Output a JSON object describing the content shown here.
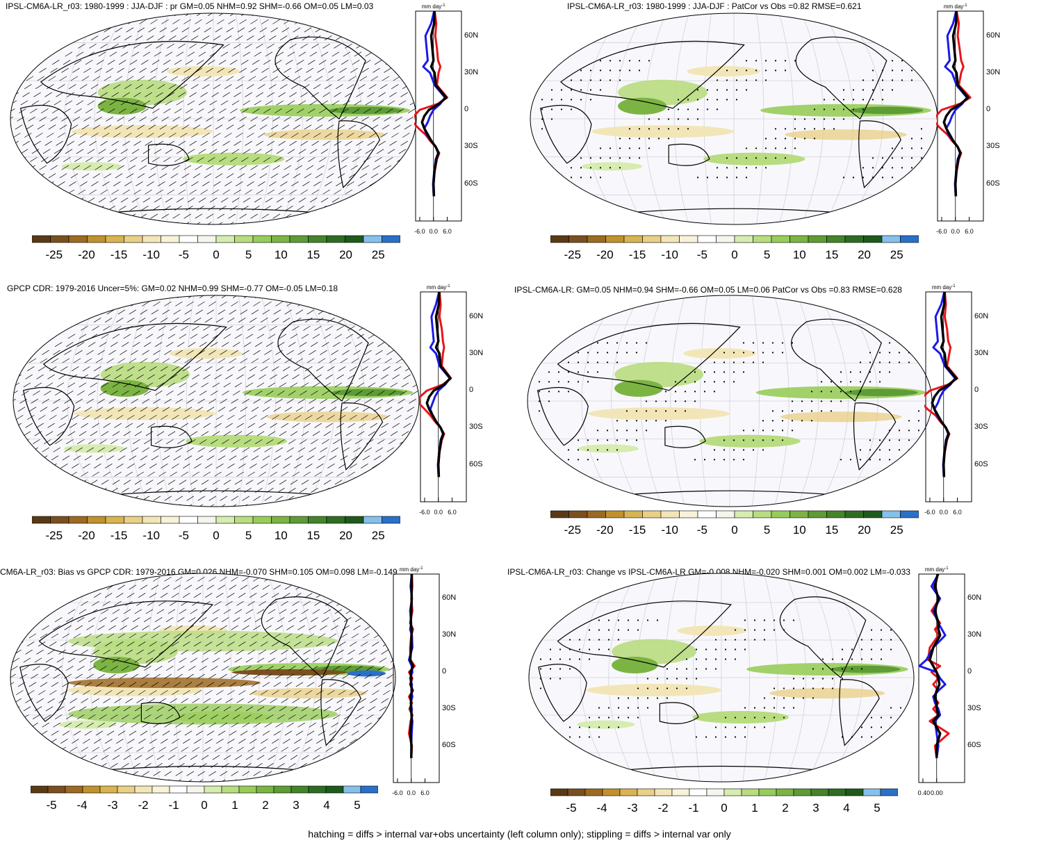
{
  "footnote": "hatching = diffs > internal var+obs uncertainty (left column only); stippling = diffs > internal var only",
  "colors": {
    "colorbar_scale": [
      "#5a3a16",
      "#7a5020",
      "#9c6a22",
      "#c0922e",
      "#d8b452",
      "#e8d088",
      "#f2e6b8",
      "#f8f2da",
      "#ffffff",
      "#f4f6ee",
      "#d6ecb0",
      "#b8dc80",
      "#98cc5a",
      "#7cb444",
      "#5e9c36",
      "#44842c",
      "#2e6c24",
      "#1e5a1c",
      "#86c0ec",
      "#2a70c8"
    ],
    "model": "#e8141a",
    "obs": "#1a1ae8",
    "mean": "#000000"
  },
  "chart_data": [
    {
      "id": "p1",
      "type": "map",
      "title": "IPSL-CM6A-LR_r03: 1980-1999 : JJA-DJF : pr GM=0.05 NHM=0.92 SHM=-0.66 OM=0.05 LM=0.03",
      "colorbar_ticks": [
        "-25",
        "-20",
        "-15",
        "-10",
        "-5",
        "0",
        "5",
        "10",
        "15",
        "20",
        "25"
      ],
      "profile": {
        "unit": "mm day",
        "unit_exp": "-1",
        "xticks": [
          "-6.0",
          "0.0",
          "6.0"
        ],
        "yticks": [
          "60N",
          "30N",
          "0",
          "30S",
          "60S"
        ],
        "lat": [
          80,
          70,
          60,
          50,
          40,
          35,
          30,
          20,
          10,
          5,
          0,
          -5,
          -10,
          -15,
          -20,
          -25,
          -30,
          -35,
          -40,
          -50,
          -60,
          -70
        ],
        "series": [
          {
            "values": [
              0.5,
              1.2,
              0.8,
              1.5,
              2.0,
              3.0,
              2.2,
              1.5,
              6.0,
              2.0,
              -6.0,
              -8.5,
              -9.0,
              -6.5,
              -3.5,
              -1.5,
              1.0,
              2.5,
              1.5,
              0.5,
              0.0,
              0.2
            ]
          },
          {
            "values": [
              0.3,
              -1.0,
              -3.5,
              -3.0,
              -2.5,
              -4.5,
              -1.5,
              0.5,
              5.0,
              3.0,
              0.0,
              -1.5,
              -2.5,
              -4.0,
              -3.0,
              -1.0,
              1.0,
              2.0,
              1.0,
              0.3,
              -0.2,
              0.1
            ]
          },
          {
            "values": [
              0.4,
              0.3,
              -1.0,
              -0.5,
              0.0,
              -1.0,
              0.5,
              1.0,
              5.5,
              2.5,
              -2.0,
              -4.0,
              -5.0,
              -4.0,
              -2.5,
              -1.0,
              1.0,
              2.2,
              1.2,
              0.4,
              0.0,
              0.2
            ]
          }
        ]
      }
    },
    {
      "id": "p2",
      "type": "map",
      "title": "IPSL-CM6A-LR_r03: 1980-1999 : JJA-DJF : PatCor vs Obs =0.82 RMSE=0.621",
      "colorbar_ticks": [
        "-25",
        "-20",
        "-15",
        "-10",
        "-5",
        "0",
        "5",
        "10",
        "15",
        "20",
        "25"
      ],
      "profile": {
        "unit": "mm day",
        "unit_exp": "-1",
        "xticks": [
          "-6.0",
          "0.0",
          "6.0"
        ],
        "yticks": [
          "60N",
          "30N",
          "0",
          "30S",
          "60S"
        ],
        "lat": [
          80,
          70,
          60,
          50,
          40,
          35,
          30,
          20,
          10,
          5,
          0,
          -5,
          -10,
          -15,
          -20,
          -25,
          -30,
          -35,
          -40,
          -50,
          -60,
          -70
        ],
        "series": [
          {
            "values": [
              0.5,
              1.5,
              1.0,
              1.8,
              2.5,
              3.5,
              2.5,
              1.5,
              6.5,
              2.0,
              -6.0,
              -8.5,
              -9.0,
              -6.5,
              -3.5,
              -1.5,
              1.0,
              2.5,
              1.5,
              0.5,
              0.0,
              0.2
            ]
          },
          {
            "values": [
              0.3,
              -1.0,
              -3.5,
              -3.0,
              -2.5,
              -4.5,
              -1.5,
              0.5,
              5.0,
              3.0,
              0.0,
              -1.5,
              -2.5,
              -4.0,
              -3.0,
              -1.0,
              1.0,
              2.0,
              1.0,
              0.3,
              -0.2,
              0.1
            ]
          },
          {
            "values": [
              0.4,
              0.3,
              -1.0,
              -0.5,
              0.0,
              -1.0,
              0.5,
              1.0,
              5.5,
              2.5,
              -2.0,
              -4.0,
              -5.0,
              -4.0,
              -2.5,
              -1.0,
              1.0,
              2.2,
              1.2,
              0.4,
              0.0,
              0.2
            ]
          }
        ]
      }
    },
    {
      "id": "p3",
      "type": "map",
      "title": "GPCP CDR: 1979-2016 Uncer=5%: GM=0.02 NHM=0.99 SHM=-0.77 OM=-0.05 LM=0.18",
      "colorbar_ticks": [
        "-25",
        "-20",
        "-15",
        "-10",
        "-5",
        "0",
        "5",
        "10",
        "15",
        "20",
        "25"
      ],
      "profile": {
        "unit": "mm day",
        "unit_exp": "-1",
        "xticks": [
          "-6.0",
          "0.0",
          "6.0"
        ],
        "yticks": [
          "60N",
          "30N",
          "0",
          "30S",
          "60S"
        ],
        "lat": [
          80,
          70,
          60,
          50,
          40,
          35,
          30,
          20,
          10,
          5,
          0,
          -5,
          -10,
          -15,
          -20,
          -25,
          -30,
          -35,
          -40,
          -50,
          -60,
          -70
        ],
        "series": [
          {
            "values": [
              0.5,
              1.0,
              0.5,
              1.5,
              2.0,
              2.5,
              2.0,
              1.5,
              5.5,
              2.0,
              -5.0,
              -8.0,
              -8.5,
              -6.0,
              -3.5,
              -1.5,
              1.0,
              2.5,
              1.5,
              0.5,
              0.0,
              0.2
            ]
          },
          {
            "values": [
              0.3,
              -1.0,
              -3.0,
              -2.5,
              -2.0,
              -3.5,
              -1.0,
              0.5,
              5.0,
              3.0,
              0.0,
              -1.5,
              -2.5,
              -3.5,
              -2.5,
              -1.0,
              1.0,
              2.0,
              1.0,
              0.3,
              -0.2,
              0.1
            ]
          },
          {
            "values": [
              0.4,
              0.2,
              -1.0,
              -0.5,
              0.0,
              -1.0,
              0.5,
              1.0,
              5.2,
              2.5,
              -2.0,
              -4.0,
              -5.0,
              -4.0,
              -2.5,
              -1.0,
              1.0,
              2.2,
              1.2,
              0.4,
              0.0,
              0.2
            ]
          }
        ]
      }
    },
    {
      "id": "p4",
      "type": "map",
      "title": "IPSL-CM6A-LR: GM=0.05 NHM=0.94 SHM=-0.66 OM=0.05 LM=0.06 PatCor vs Obs =0.83 RMSE=0.628",
      "colorbar_ticks": [
        "-25",
        "-20",
        "-15",
        "-10",
        "-5",
        "0",
        "5",
        "10",
        "15",
        "20",
        "25"
      ],
      "profile": {
        "unit": "mm day",
        "unit_exp": "-1",
        "xticks": [
          "-6.0",
          "0.0",
          "6.0"
        ],
        "yticks": [
          "60N",
          "30N",
          "0",
          "30S",
          "60S"
        ],
        "lat": [
          80,
          70,
          60,
          50,
          40,
          35,
          30,
          20,
          10,
          5,
          0,
          -5,
          -10,
          -15,
          -20,
          -25,
          -30,
          -35,
          -40,
          -50,
          -60,
          -70
        ],
        "series": [
          {
            "values": [
              0.5,
              1.0,
              0.5,
              1.5,
              2.0,
              3.0,
              2.5,
              1.5,
              6.0,
              2.0,
              -6.0,
              -9.0,
              -9.5,
              -7.0,
              -3.5,
              -1.5,
              1.0,
              2.5,
              1.5,
              0.5,
              0.0,
              0.2
            ]
          },
          {
            "values": [
              0.3,
              -1.0,
              -3.5,
              -3.0,
              -2.5,
              -4.5,
              -1.5,
              0.5,
              5.0,
              3.0,
              0.0,
              -1.5,
              -2.5,
              -4.0,
              -3.0,
              -1.0,
              1.0,
              2.0,
              1.0,
              0.3,
              -0.2,
              0.1
            ]
          },
          {
            "values": [
              0.4,
              0.3,
              -1.0,
              -0.5,
              0.0,
              -1.0,
              0.5,
              1.0,
              5.5,
              2.5,
              -2.0,
              -4.0,
              -5.0,
              -4.0,
              -2.5,
              -1.0,
              1.0,
              2.2,
              1.2,
              0.4,
              0.0,
              0.2
            ]
          }
        ]
      }
    },
    {
      "id": "p5",
      "type": "map",
      "title": "CM6A-LR_r03: Bias vs GPCP CDR: 1979-2016 GM=0.026 NHM=-0.070 SHM=0.105 OM=0.098 LM=-0.149",
      "colorbar_ticks": [
        "-5",
        "-4",
        "-3",
        "-2",
        "-1",
        "0",
        "1",
        "2",
        "3",
        "4",
        "5"
      ],
      "profile": {
        "unit": "mm day",
        "unit_exp": "-1",
        "xticks": [
          "-6.0",
          "0.0",
          "6.0"
        ],
        "yticks": [
          "60N",
          "30N",
          "0",
          "30S",
          "60S"
        ],
        "lat": [
          80,
          70,
          60,
          50,
          40,
          35,
          30,
          20,
          10,
          5,
          0,
          -5,
          -10,
          -15,
          -20,
          -25,
          -30,
          -35,
          -40,
          -50,
          -60,
          -70
        ],
        "series": [
          {
            "values": [
              0.3,
              0.5,
              0.0,
              0.5,
              -0.5,
              0.8,
              0.0,
              -0.5,
              -0.3,
              1.5,
              -1.0,
              0.5,
              -0.5,
              0.8,
              -1.0,
              0.3,
              -0.8,
              0.5,
              -0.3,
              -1.0,
              0.3,
              0.0
            ]
          },
          {
            "values": [
              0.2,
              -0.3,
              0.3,
              -0.5,
              0.0,
              -0.5,
              0.3,
              0.5,
              -1.0,
              0.2,
              0.5,
              -0.5,
              0.3,
              0.0,
              0.5,
              -0.3,
              0.3,
              0.0,
              0.5,
              0.2,
              0.0,
              0.1
            ]
          },
          {
            "values": [
              0.2,
              0.1,
              0.2,
              0.0,
              -0.2,
              0.2,
              0.1,
              0.0,
              -0.5,
              0.8,
              -0.3,
              0.0,
              -0.2,
              0.4,
              -0.3,
              0.0,
              -0.2,
              0.2,
              0.1,
              -0.4,
              0.1,
              0.0
            ]
          }
        ]
      }
    },
    {
      "id": "p6",
      "type": "map",
      "title": "IPSL-CM6A-LR_r03: Change vs IPSL-CM6A-LR GM=-0.008 NHM=-0.020 SHM=0.001 OM=0.002 LM=-0.033",
      "colorbar_ticks": [
        "-5",
        "-4",
        "-3",
        "-2",
        "-1",
        "0",
        "1",
        "2",
        "3",
        "4",
        "5"
      ],
      "profile": {
        "unit": "mm day",
        "unit_exp": "-1",
        "xticks": [
          "-0.40",
          "0.00"
        ],
        "yticks": [
          "60N",
          "30N",
          "0",
          "30S",
          "60S"
        ],
        "lat": [
          80,
          70,
          60,
          50,
          40,
          35,
          30,
          20,
          10,
          5,
          0,
          -5,
          -10,
          -15,
          -20,
          -25,
          -30,
          -35,
          -40,
          -50,
          -60,
          -70
        ],
        "series": [
          {
            "values": [
              0.05,
              -0.1,
              0.08,
              -0.15,
              0.1,
              -0.05,
              0.05,
              -0.2,
              -0.25,
              0.1,
              -0.15,
              0.05,
              -0.1,
              0.05,
              -0.1,
              0.05,
              -0.1,
              0.05,
              -0.2,
              0.35,
              -0.05,
              0.0
            ]
          },
          {
            "values": [
              0.05,
              -0.15,
              0.1,
              -0.1,
              0.05,
              0.15,
              0.25,
              -0.1,
              -0.3,
              -0.5,
              0.0,
              0.1,
              0.25,
              0.05,
              -0.1,
              -0.05,
              0.05,
              0.1,
              -0.05,
              0.0,
              0.05,
              0.0
            ]
          },
          {
            "values": [
              0.03,
              -0.05,
              0.05,
              -0.05,
              0.05,
              0.05,
              0.1,
              -0.1,
              -0.2,
              -0.1,
              0.0,
              0.05,
              0.08,
              0.0,
              -0.05,
              0.0,
              0.0,
              0.05,
              -0.1,
              0.1,
              0.0,
              0.0
            ]
          }
        ]
      }
    }
  ]
}
